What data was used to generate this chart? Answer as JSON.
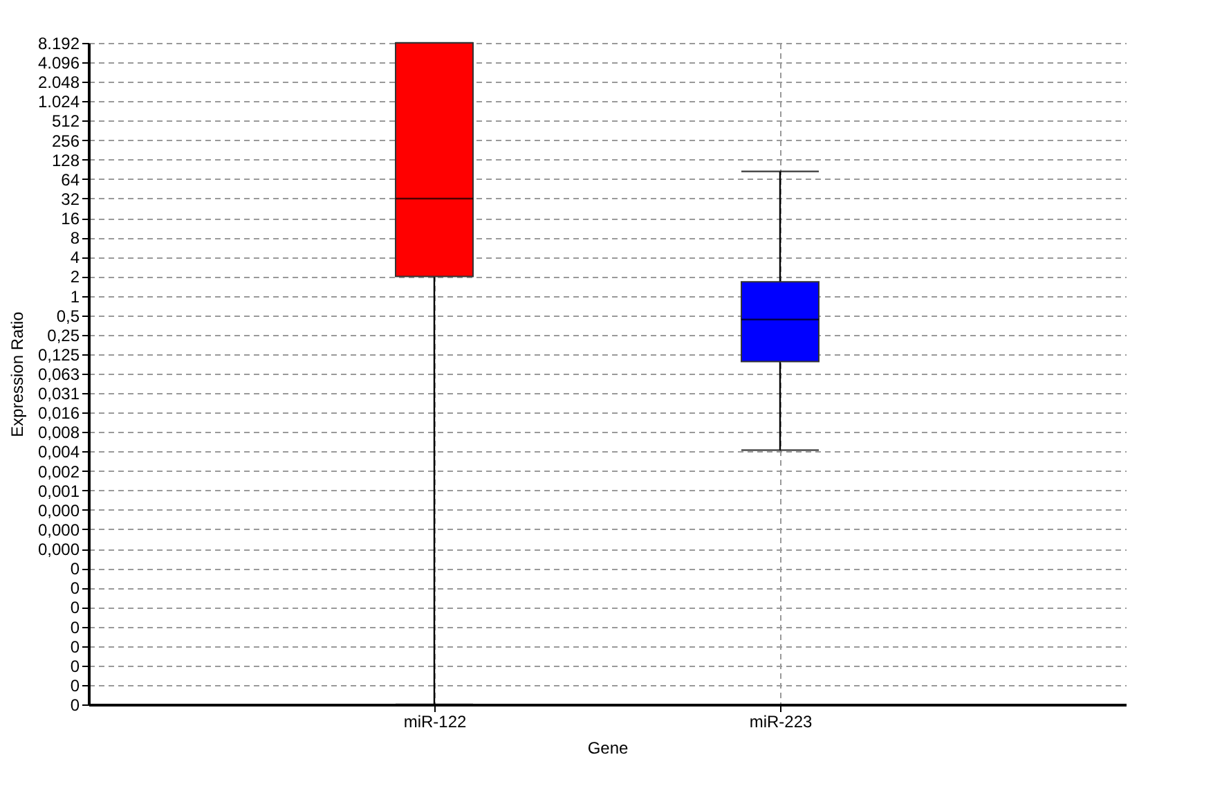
{
  "chart_data": {
    "type": "box",
    "xlabel": "Gene",
    "ylabel": "Expression Ratio",
    "categories": [
      "miR-122",
      "miR-223"
    ],
    "boxes": [
      {
        "low": 4.76837158203125e-07,
        "q1": 2,
        "median": 32,
        "q3": 8192,
        "high": 8192
      },
      {
        "low": 0.0041,
        "q1": 0.096,
        "median": 0.43,
        "q3": 1.65,
        "high": 84
      }
    ],
    "colors": [
      "#ff0000",
      "#0000ff"
    ],
    "log": "y",
    "grid": true,
    "ylim": [
      4.76837158203125e-07,
      8192
    ],
    "yticks": [
      {
        "value": 8192,
        "label": "8.192"
      },
      {
        "value": 4096,
        "label": "4.096"
      },
      {
        "value": 2048,
        "label": "2.048"
      },
      {
        "value": 1024,
        "label": "1.024"
      },
      512,
      256,
      128,
      64,
      32,
      16,
      8,
      4,
      2,
      1,
      {
        "value": 0.5,
        "label": "0,5"
      },
      {
        "value": 0.25,
        "label": "0,25"
      },
      {
        "value": 0.125,
        "label": "0,125"
      },
      {
        "value": 0.0625,
        "label": "0,063"
      },
      {
        "value": 0.03125,
        "label": "0,031"
      },
      {
        "value": 0.015625,
        "label": "0,016"
      },
      {
        "value": 0.0078125,
        "label": "0,008"
      },
      {
        "value": 0.00390625,
        "label": "0,004"
      },
      {
        "value": 0.001953125,
        "label": "0,002"
      },
      {
        "value": 0.0009765625,
        "label": "0,001"
      },
      {
        "value": 0.00048828125,
        "label": "0,000"
      },
      {
        "value": 0.000244140625,
        "label": "0,000"
      },
      {
        "value": 0.0001220703125,
        "label": "0,000"
      },
      {
        "value": 6.103515625e-05,
        "label": "0"
      },
      {
        "value": 3.0517578125e-05,
        "label": "0"
      },
      {
        "value": 1.52587890625e-05,
        "label": "0"
      },
      {
        "value": 7.62939453125e-06,
        "label": "0"
      },
      {
        "value": 3.814697265625e-06,
        "label": "0"
      },
      {
        "value": 1.9073486328125e-06,
        "label": "0"
      },
      {
        "value": 9.5367431640625e-07,
        "label": "0"
      },
      {
        "value": 4.76837158203125e-07,
        "label": "0"
      }
    ]
  }
}
